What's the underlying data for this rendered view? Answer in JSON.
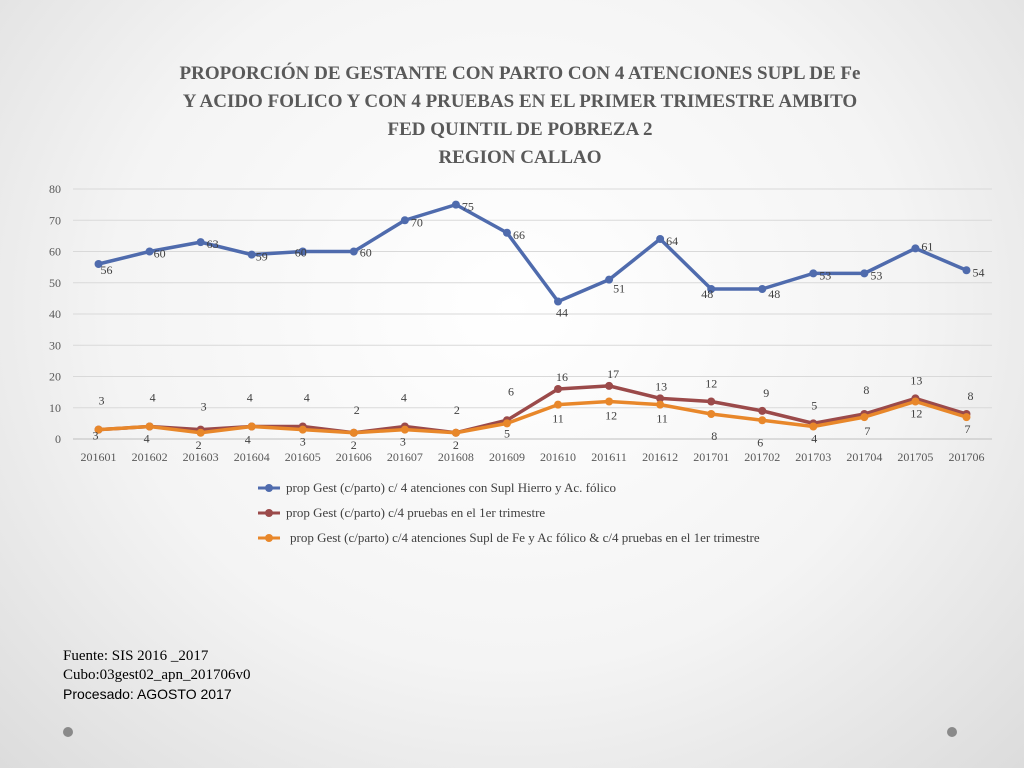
{
  "title_lines": [
    "PROPORCIÓN DE GESTANTE  CON PARTO CON 4 ATENCIONES SUPL DE Fe",
    "Y ACIDO FOLICO  Y CON 4 PRUEBAS EN EL PRIMER TRIMESTRE AMBITO",
    "FED QUINTIL DE POBREZA 2",
    "REGION CALLAO"
  ],
  "footer": {
    "line1": "Fuente: SIS 2016 _2017",
    "line2": "Cubo:03gest02_apn_201706v0",
    "line3": "Procesado: AGOSTO 2017"
  },
  "chart_data": {
    "type": "line",
    "title": "PROPORCIÓN DE GESTANTE  CON PARTO CON 4 ATENCIONES SUPL DE Fe Y ACIDO FOLICO  Y CON 4 PRUEBAS EN EL PRIMER TRIMESTRE AMBITO FED QUINTIL DE POBREZA 2 REGION CALLAO",
    "categories": [
      "201601",
      "201602",
      "201603",
      "201604",
      "201605",
      "201606",
      "201607",
      "201608",
      "201609",
      "201610",
      "201611",
      "201612",
      "201701",
      "201702",
      "201703",
      "201704",
      "201705",
      "201706"
    ],
    "ylim": [
      0,
      80
    ],
    "yticks": [
      0,
      10,
      20,
      30,
      40,
      50,
      60,
      70,
      80
    ],
    "grid": true,
    "legend_position": "bottom",
    "series": [
      {
        "name": "prop Gest (c/parto) c/ 4 atenciones con Supl Hierro y Ac. fólico",
        "color": "#4f6bad",
        "values": [
          56,
          60,
          63,
          59,
          60,
          60,
          70,
          75,
          66,
          44,
          51,
          64,
          48,
          48,
          53,
          53,
          61,
          54
        ]
      },
      {
        "name": "prop Gest (c/parto) c/4 pruebas en el 1er trimestre",
        "color": "#9b4a4a",
        "values": [
          3,
          4,
          3,
          4,
          4,
          2,
          4,
          2,
          6,
          16,
          17,
          13,
          12,
          9,
          5,
          8,
          13,
          8
        ]
      },
      {
        "name": "prop Gest (c/parto) c/4 atenciones Supl de Fe y Ac fólico & c/4 pruebas en el 1er trimestre",
        "color": "#e8872a",
        "values": [
          3,
          4,
          2,
          4,
          3,
          2,
          3,
          2,
          5,
          11,
          12,
          11,
          8,
          6,
          4,
          7,
          12,
          7
        ]
      }
    ]
  }
}
